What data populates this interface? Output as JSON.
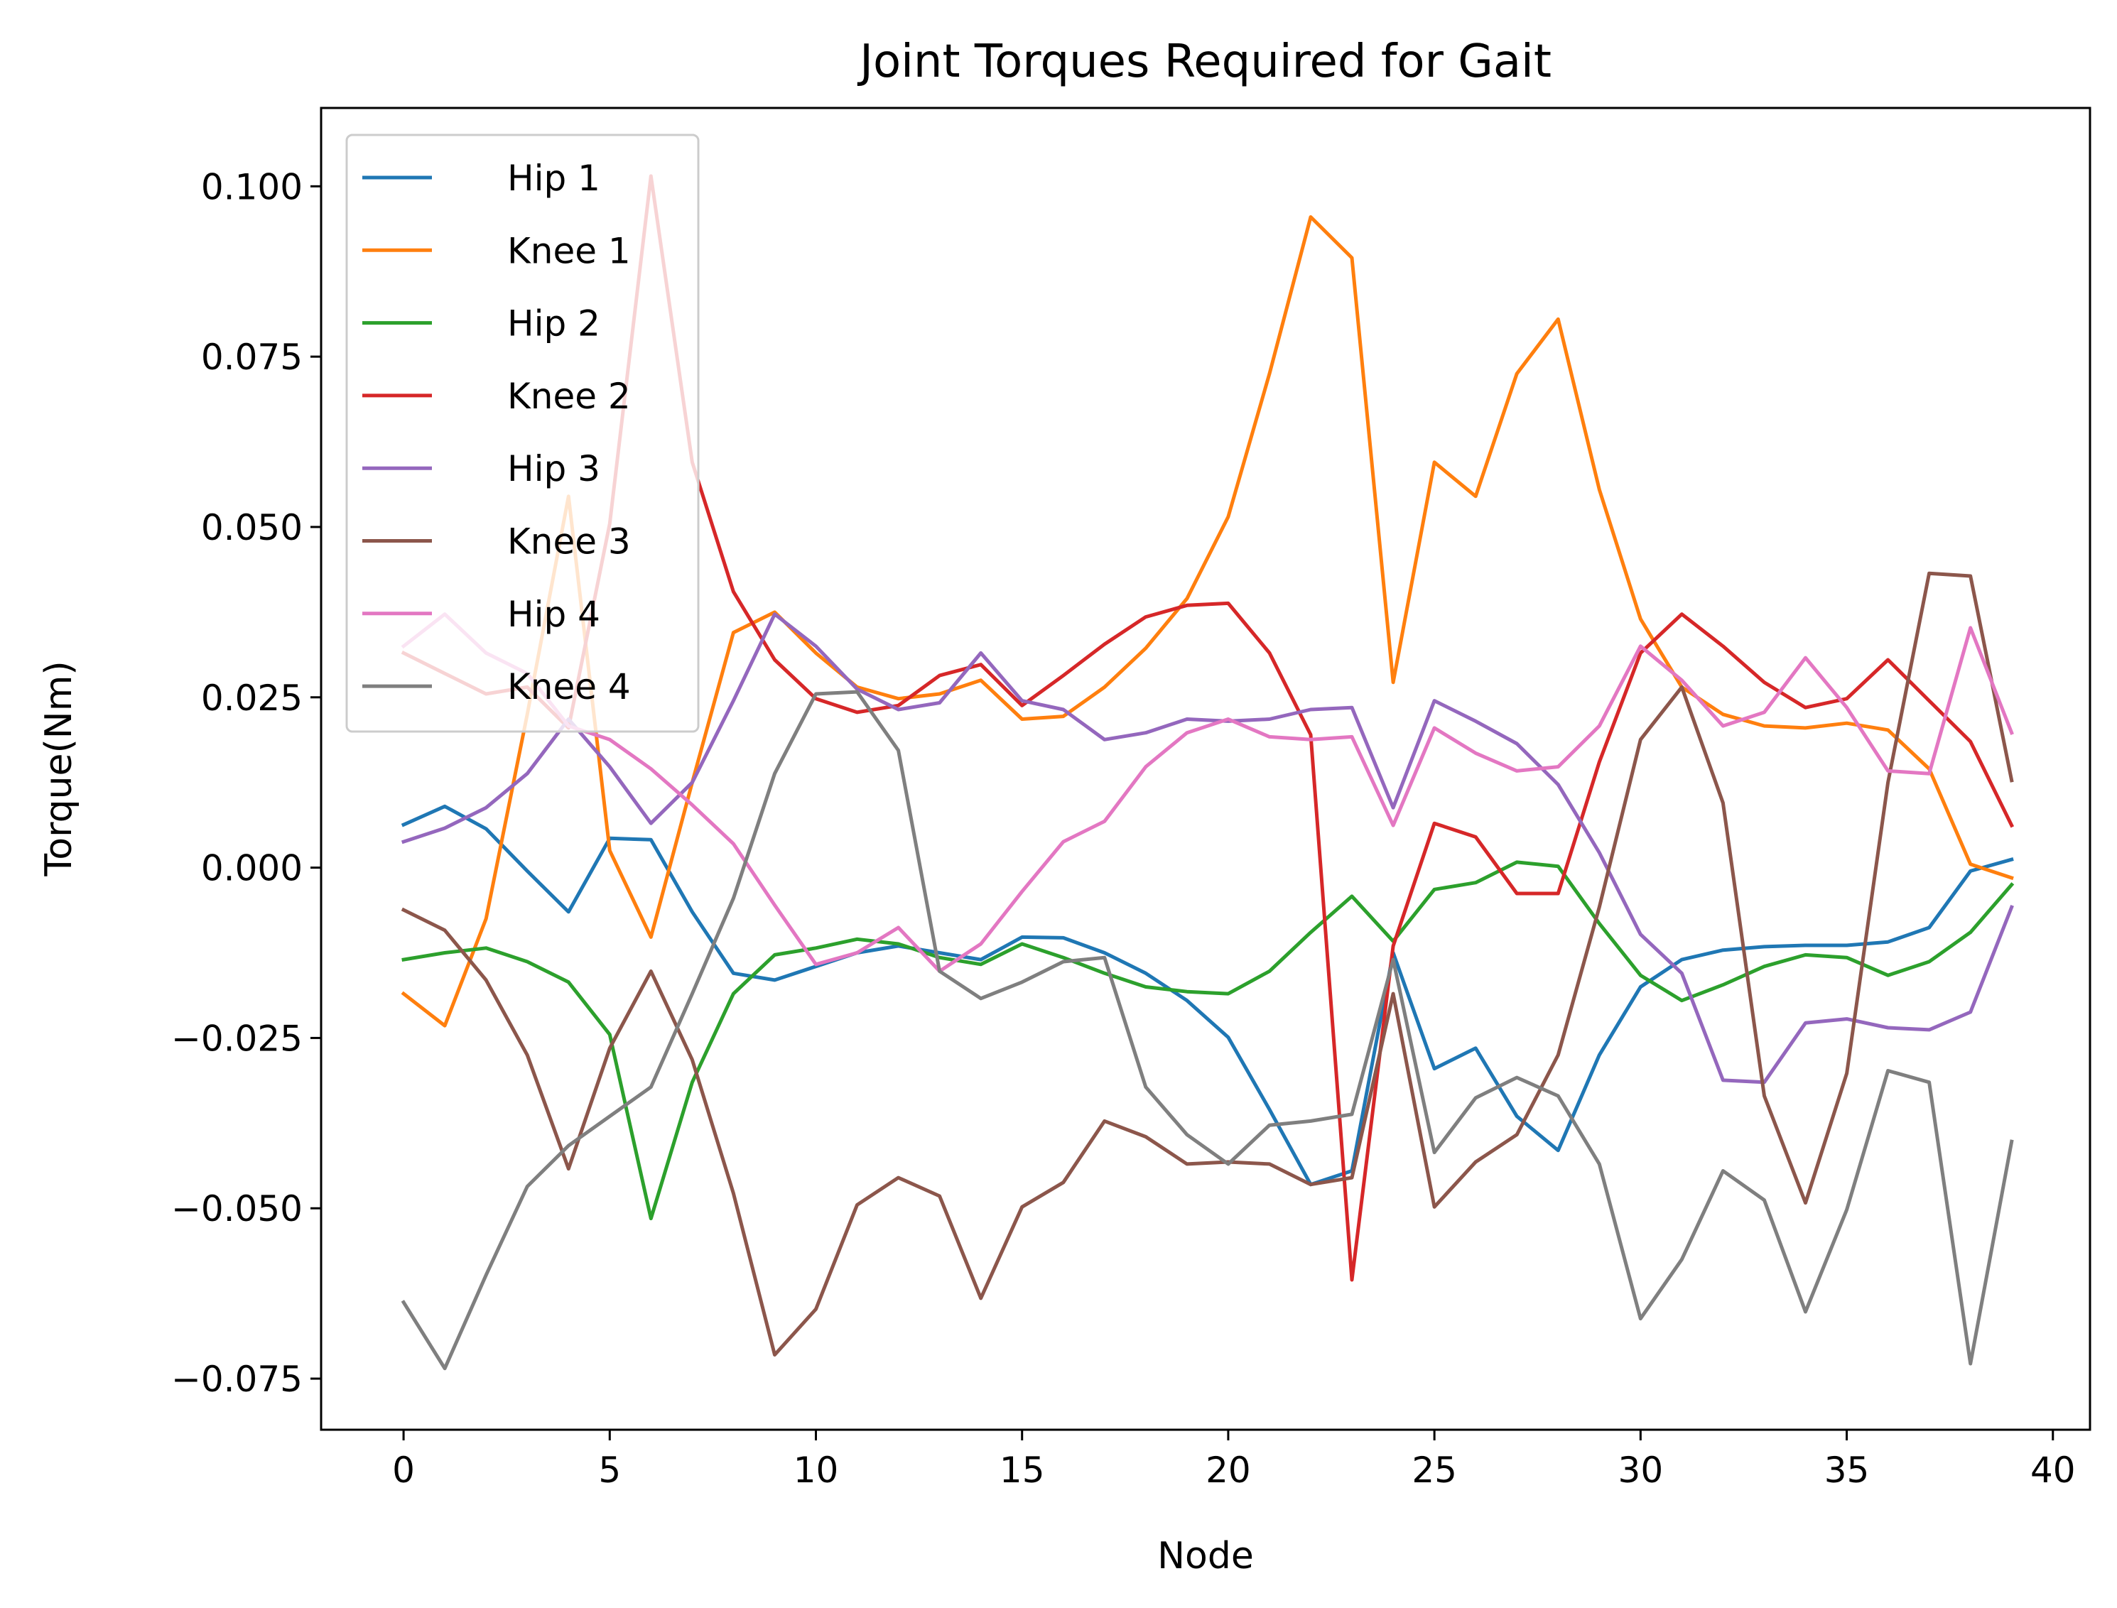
{
  "chart_data": {
    "type": "line",
    "title": "Joint Torques Required for Gait",
    "xlabel": "Node",
    "ylabel": "Torque(Nm)",
    "xlim": [
      -2,
      40.9
    ],
    "ylim": [
      -0.0825,
      0.1115
    ],
    "xticks": [
      0,
      5,
      10,
      15,
      20,
      25,
      30,
      35,
      40
    ],
    "xtick_labels": [
      "0",
      "5",
      "10",
      "15",
      "20",
      "25",
      "30",
      "35",
      "40"
    ],
    "yticks": [
      0.1,
      0.075,
      0.05,
      0.025,
      0.0,
      -0.025,
      -0.05,
      -0.075
    ],
    "ytick_labels": [
      "0.100",
      "0.075",
      "0.050",
      "0.025",
      "0.000",
      "−0.025",
      "−0.050",
      "−0.075"
    ],
    "grid": false,
    "legend_position": "top-left",
    "x": [
      0,
      1,
      2,
      3,
      4,
      5,
      6,
      7,
      8,
      9,
      10,
      11,
      12,
      13,
      14,
      15,
      16,
      17,
      18,
      19,
      20,
      21,
      22,
      23,
      24,
      25,
      26,
      27,
      28,
      29,
      30,
      31,
      32,
      33,
      34,
      35,
      36,
      37,
      38,
      39
    ],
    "series": [
      {
        "name": "Hip 1",
        "color": "#1f77b4",
        "values": [
          0.0063,
          0.009,
          0.0057,
          -0.0005,
          -0.0065,
          0.0043,
          0.0041,
          -0.0065,
          -0.0155,
          -0.0165,
          -0.0145,
          -0.0125,
          -0.0115,
          -0.0125,
          -0.0135,
          -0.0102,
          -0.0103,
          -0.0125,
          -0.0155,
          -0.0195,
          -0.0249,
          -0.0355,
          -0.0465,
          -0.0445,
          -0.0125,
          -0.0295,
          -0.0265,
          -0.0365,
          -0.0415,
          -0.0275,
          -0.0175,
          -0.0135,
          -0.0121,
          -0.0116,
          -0.0114,
          -0.0114,
          -0.0109,
          -0.0088,
          -0.0005,
          0.0012
        ]
      },
      {
        "name": "Knee 1",
        "color": "#ff7f0e",
        "values": [
          -0.0185,
          -0.0232,
          -0.0075,
          0.0225,
          0.0545,
          0.0025,
          -0.0102,
          0.0125,
          0.0345,
          0.0375,
          0.0315,
          0.0265,
          0.0248,
          0.0255,
          0.0275,
          0.0218,
          0.0222,
          0.0265,
          0.0322,
          0.0395,
          0.0515,
          0.0725,
          0.0955,
          0.0895,
          0.0272,
          0.0595,
          0.0545,
          0.0725,
          0.0805,
          0.0555,
          0.0365,
          0.0265,
          0.0225,
          0.0208,
          0.0205,
          0.0212,
          0.0202,
          0.0145,
          0.0005,
          -0.0015
        ]
      },
      {
        "name": "Hip 2",
        "color": "#2ca02c",
        "values": [
          -0.0135,
          -0.0125,
          -0.0118,
          -0.0138,
          -0.0168,
          -0.0245,
          -0.0515,
          -0.0315,
          -0.0185,
          -0.0128,
          -0.0118,
          -0.0105,
          -0.0112,
          -0.0132,
          -0.0142,
          -0.0112,
          -0.0132,
          -0.0155,
          -0.0175,
          -0.0182,
          -0.0185,
          -0.0152,
          -0.0095,
          -0.0042,
          -0.0108,
          -0.0032,
          -0.0022,
          0.0008,
          0.0002,
          -0.0082,
          -0.0158,
          -0.0195,
          -0.0172,
          -0.0145,
          -0.0128,
          -0.0132,
          -0.0158,
          -0.0138,
          -0.0095,
          -0.0025
        ]
      },
      {
        "name": "Knee 2",
        "color": "#d62728",
        "values": [
          0.0315,
          0.0285,
          0.0255,
          0.0265,
          0.0205,
          0.0505,
          0.1015,
          0.0595,
          0.0405,
          0.0305,
          0.0248,
          0.0228,
          0.0238,
          0.0282,
          0.0298,
          0.0238,
          0.0282,
          0.0328,
          0.0368,
          0.0385,
          0.0388,
          0.0315,
          0.0195,
          -0.0605,
          -0.0115,
          0.0065,
          0.0045,
          -0.0038,
          -0.0038,
          0.0155,
          0.0315,
          0.0372,
          0.0325,
          0.0272,
          0.0235,
          0.0248,
          0.0305,
          0.0245,
          0.0185,
          0.0062
        ]
      },
      {
        "name": "Hip 3",
        "color": "#9467bd",
        "values": [
          0.0038,
          0.0058,
          0.0088,
          0.0138,
          0.0218,
          0.0148,
          0.0065,
          0.0125,
          0.0245,
          0.0372,
          0.0325,
          0.0262,
          0.0232,
          0.0242,
          0.0315,
          0.0245,
          0.0232,
          0.0188,
          0.0198,
          0.0218,
          0.0215,
          0.0218,
          0.0232,
          0.0235,
          0.0088,
          0.0245,
          0.0215,
          0.0182,
          0.0122,
          0.0022,
          -0.0098,
          -0.0155,
          -0.0312,
          -0.0315,
          -0.0228,
          -0.0222,
          -0.0235,
          -0.0238,
          -0.0212,
          -0.0058
        ]
      },
      {
        "name": "Knee 3",
        "color": "#8c564b",
        "values": [
          -0.0062,
          -0.0092,
          -0.0165,
          -0.0275,
          -0.0442,
          -0.0265,
          -0.0152,
          -0.0282,
          -0.0478,
          -0.0715,
          -0.0648,
          -0.0495,
          -0.0455,
          -0.0482,
          -0.0632,
          -0.0498,
          -0.0462,
          -0.0372,
          -0.0395,
          -0.0435,
          -0.0432,
          -0.0435,
          -0.0465,
          -0.0455,
          -0.0185,
          -0.0498,
          -0.0432,
          -0.0392,
          -0.0275,
          -0.0058,
          0.0188,
          0.0265,
          0.0095,
          -0.0335,
          -0.0492,
          -0.0302,
          0.0125,
          0.0432,
          0.0428,
          0.0128
        ]
      },
      {
        "name": "Hip 4",
        "color": "#e377c2",
        "values": [
          0.0325,
          0.0372,
          0.0315,
          0.0285,
          0.0208,
          0.0188,
          0.0145,
          0.0092,
          0.0035,
          -0.0055,
          -0.0142,
          -0.0125,
          -0.0088,
          -0.0152,
          -0.0112,
          -0.0035,
          0.0038,
          0.0068,
          0.0148,
          0.0198,
          0.0218,
          0.0192,
          0.0188,
          0.0192,
          0.0062,
          0.0205,
          0.0168,
          0.0142,
          0.0148,
          0.0208,
          0.0325,
          0.0275,
          0.0208,
          0.0228,
          0.0308,
          0.0235,
          0.0142,
          0.0138,
          0.0352,
          0.0198
        ]
      },
      {
        "name": "Knee 4",
        "color": "#7f7f7f",
        "values": [
          -0.0638,
          -0.0735,
          -0.0598,
          -0.0468,
          -0.0408,
          -0.0365,
          -0.0322,
          -0.0185,
          -0.0045,
          0.0138,
          0.0255,
          0.0258,
          0.0172,
          -0.0152,
          -0.0192,
          -0.0168,
          -0.0138,
          -0.0132,
          -0.0322,
          -0.0392,
          -0.0435,
          -0.0378,
          -0.0372,
          -0.0362,
          -0.0135,
          -0.0418,
          -0.0338,
          -0.0308,
          -0.0335,
          -0.0435,
          -0.0662,
          -0.0575,
          -0.0445,
          -0.0488,
          -0.0652,
          -0.0502,
          -0.0298,
          -0.0315,
          -0.0728,
          -0.0402
        ]
      }
    ]
  }
}
